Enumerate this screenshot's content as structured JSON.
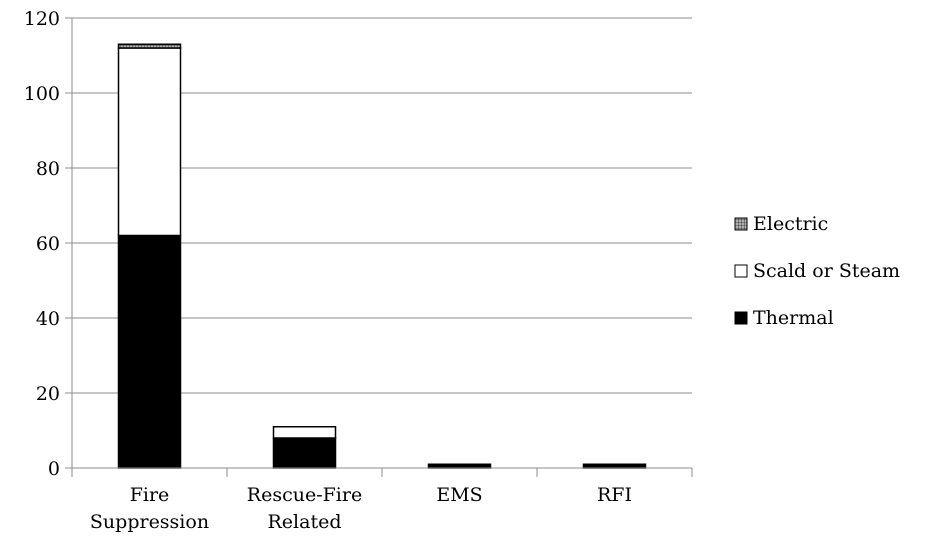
{
  "chart_data": {
    "type": "bar",
    "stacked": true,
    "categories": [
      [
        "Fire",
        "Suppression"
      ],
      [
        "Rescue-Fire",
        "Related"
      ],
      [
        "EMS"
      ],
      [
        "RFI"
      ]
    ],
    "series": [
      {
        "name": "Thermal",
        "values": [
          62,
          8,
          1,
          1
        ],
        "color": "#000000",
        "pattern": "solid"
      },
      {
        "name": "Scald or Steam",
        "values": [
          50,
          3,
          0,
          0
        ],
        "color": "#ffffff",
        "pattern": "solid"
      },
      {
        "name": "Electric",
        "values": [
          1,
          0,
          0,
          0
        ],
        "color": "#808080",
        "pattern": "grid"
      }
    ],
    "legend_order": [
      "Electric",
      "Scald or Steam",
      "Thermal"
    ],
    "legend_position": "right",
    "ylim": [
      0,
      120
    ],
    "yticks": [
      0,
      20,
      40,
      60,
      80,
      100,
      120
    ],
    "grid": true,
    "title": "",
    "xlabel": "",
    "ylabel": ""
  }
}
